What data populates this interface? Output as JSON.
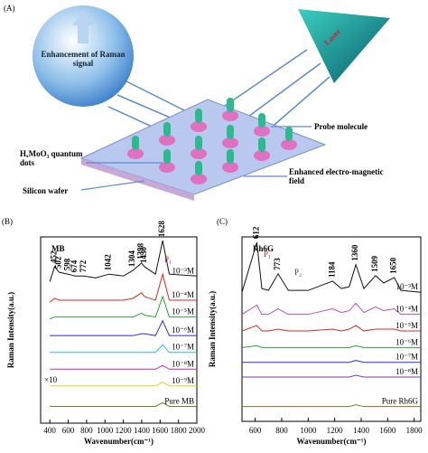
{
  "panel_a": {
    "label": "(A)",
    "sphere_text": "Enhancement of Raman signal",
    "laser": "Laser",
    "probe": "Probe molecule",
    "dots": "HₓMoO₃ quantum dots",
    "field": "Enhanced electro-magnetic field",
    "wafer": "Silicon wafer"
  },
  "chart_data": [
    {
      "type": "line",
      "panel_label": "(B)",
      "title": "MB",
      "x_label": "Wavenumber(cm⁻¹)",
      "y_label": "Raman Intensity(a.u.)",
      "annotations": [
        "P₁",
        "×10"
      ],
      "xlim": [
        300,
        2000
      ],
      "xticks": [
        400,
        600,
        800,
        1000,
        1200,
        1400,
        1600,
        1800,
        2000
      ],
      "ylim": [
        0,
        100
      ],
      "x": [
        400,
        452,
        502,
        598,
        674,
        772,
        900,
        1042,
        1200,
        1304,
        1398,
        1430,
        1550,
        1628,
        1700,
        2000
      ],
      "peak_labels": [
        452,
        502,
        598,
        674,
        772,
        1042,
        1304,
        1398,
        1430,
        1628
      ],
      "series": [
        {
          "name": "10⁻³M",
          "color": "#111111",
          "values": [
            76,
            84,
            81,
            80,
            79,
            79,
            78,
            80,
            79,
            82,
            86,
            84,
            80,
            98,
            80,
            79
          ]
        },
        {
          "name": "10⁻⁴M",
          "color": "#e0261e",
          "values": [
            65,
            67,
            66,
            66,
            66,
            66,
            66,
            66,
            66,
            67,
            70,
            68,
            66,
            80,
            66,
            66
          ]
        },
        {
          "name": "10⁻⁵M",
          "color": "#2e9e3a",
          "values": [
            56,
            57,
            57,
            57,
            57,
            57,
            57,
            57,
            57,
            57,
            59,
            58,
            57,
            68,
            57,
            57
          ]
        },
        {
          "name": "10⁻⁶M",
          "color": "#2a2ad0",
          "values": [
            47,
            47,
            47,
            47,
            47,
            47,
            47,
            47,
            47,
            47,
            48,
            48,
            47,
            55,
            47,
            47
          ]
        },
        {
          "name": "10⁻⁷M",
          "color": "#21c0d8",
          "values": [
            38,
            38,
            38,
            38,
            38,
            38,
            38,
            38,
            38,
            38,
            38,
            38,
            38,
            42,
            38,
            38
          ]
        },
        {
          "name": "10⁻⁸M",
          "color": "#c02ac0",
          "values": [
            29,
            29,
            29,
            29,
            29,
            29,
            29,
            29,
            29,
            29,
            29,
            29,
            29,
            31,
            29,
            29
          ]
        },
        {
          "name": "10⁻⁹M",
          "color": "#e0d020",
          "values": [
            20,
            20,
            20,
            20,
            20,
            20,
            20,
            20,
            20,
            20,
            20,
            20,
            20,
            22,
            20,
            20
          ]
        },
        {
          "name": "Pure MB",
          "color": "#7a7a2a",
          "values": [
            9,
            9,
            9,
            9,
            9,
            9,
            9,
            9,
            9,
            9,
            9,
            9,
            9,
            11,
            9,
            9
          ]
        }
      ]
    },
    {
      "type": "line",
      "panel_label": "(C)",
      "title": "Rh6G",
      "x_label": "Wavenumber(cm⁻¹)",
      "y_label": "Raman Intensity(a.u.)",
      "annotations": [
        "P₁",
        "P₂"
      ],
      "xlim": [
        500,
        1850
      ],
      "xticks": [
        600,
        800,
        1000,
        1200,
        1400,
        1600,
        1800
      ],
      "ylim": [
        0,
        100
      ],
      "x": [
        500,
        612,
        650,
        700,
        773,
        850,
        1000,
        1184,
        1250,
        1310,
        1360,
        1420,
        1509,
        1570,
        1650,
        1700,
        1850
      ],
      "peak_labels": [
        612,
        773,
        1184,
        1360,
        1509,
        1650
      ],
      "series": [
        {
          "name": "10⁻³M",
          "color": "#111111",
          "values": [
            70,
            97,
            72,
            71,
            80,
            71,
            71,
            76,
            72,
            73,
            85,
            72,
            79,
            75,
            78,
            71,
            70
          ]
        },
        {
          "name": "10⁻⁴M",
          "color": "#c04ac0",
          "values": [
            58,
            63,
            58,
            58,
            61,
            58,
            58,
            61,
            59,
            60,
            64,
            59,
            62,
            60,
            61,
            58,
            58
          ]
        },
        {
          "name": "10⁻⁵M",
          "color": "#e0261e",
          "values": [
            49,
            52,
            49,
            49,
            50,
            49,
            49,
            50,
            49,
            50,
            52,
            49,
            50,
            50,
            50,
            49,
            49
          ]
        },
        {
          "name": "10⁻⁶M",
          "color": "#2e9e3a",
          "values": [
            40,
            41,
            40,
            40,
            40,
            40,
            40,
            40,
            40,
            40,
            41,
            40,
            40,
            40,
            40,
            40,
            40
          ]
        },
        {
          "name": "10⁻⁷M",
          "color": "#2a2ad0",
          "values": [
            32,
            32,
            32,
            32,
            32,
            32,
            32,
            32,
            32,
            32,
            33,
            32,
            32,
            32,
            32,
            32,
            32
          ]
        },
        {
          "name": "10⁻⁸M",
          "color": "#7a3ab0",
          "values": [
            24,
            24,
            24,
            24,
            24,
            24,
            24,
            24,
            24,
            24,
            25,
            24,
            24,
            24,
            24,
            24,
            24
          ]
        },
        {
          "name": "Pure Rh6G",
          "color": "#7a7a2a",
          "values": [
            8,
            8,
            8,
            8,
            8,
            8,
            8,
            8,
            8,
            8,
            9,
            8,
            8,
            8,
            8,
            8,
            8
          ]
        }
      ]
    }
  ]
}
